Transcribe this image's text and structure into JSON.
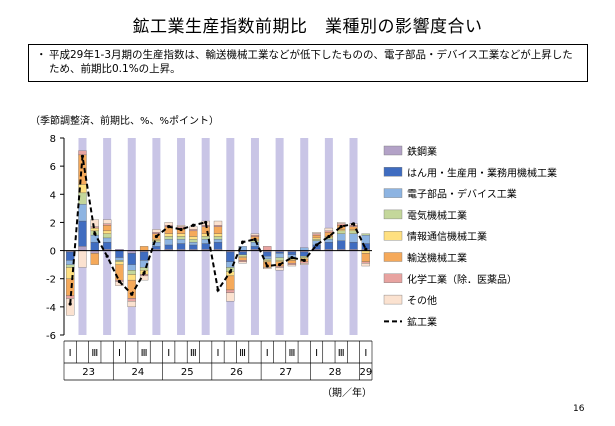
{
  "header": {
    "title": "鉱工業生産指数前期比　業種別の影響度合い",
    "note": "平成29年1-3月期の生産指数は、輸送機械工業などが低下したものの、電子部品・デバイス工業などが上昇したため、前期比0.1%の上昇。",
    "note_bullet": "・",
    "unit": "（季節調整済、前期比、%、%ポイント）",
    "page_number": "16"
  },
  "colors": {
    "shade": "#C9C5E6",
    "steel": "#B3A2C7",
    "general_machinery": "#3F6CC0",
    "electronic_parts": "#8DB4E2",
    "electrical_machinery": "#C4D79B",
    "info_equipment": "#FFE080",
    "transport": "#F5A95A",
    "chemical": "#E8A3A0",
    "other": "#FBE2D0",
    "mining_line": "#000000"
  },
  "chart_data": {
    "type": "bar",
    "subtype": "stacked bar with line overlay",
    "title": "鉱工業生産指数前期比　業種別の影響度合い",
    "ylabel": "（季節調整済、前期比、%、%ポイント）",
    "xlabel": "（期／年）",
    "ylim": [
      -6,
      8
    ],
    "yticks": [
      "-6",
      "-4",
      "-2",
      "0",
      "2",
      "4",
      "6",
      "8"
    ],
    "grid": false,
    "legend_position": "right",
    "categories": [
      "23-I",
      "23-II",
      "23-III",
      "23-IV",
      "24-I",
      "24-II",
      "24-III",
      "24-IV",
      "25-I",
      "25-II",
      "25-III",
      "25-IV",
      "26-I",
      "26-II",
      "26-III",
      "26-IV",
      "27-I",
      "27-II",
      "27-III",
      "27-IV",
      "28-I",
      "28-II",
      "28-III",
      "28-IV",
      "29-I"
    ],
    "x_tick_labels": [
      "Ⅰ",
      "Ⅲ",
      "Ⅰ",
      "Ⅲ",
      "Ⅰ",
      "Ⅲ",
      "Ⅰ",
      "Ⅲ",
      "Ⅰ",
      "Ⅲ",
      "Ⅰ",
      "Ⅲ",
      "Ⅰ"
    ],
    "x_tick_quarters": [
      0,
      2,
      4,
      6,
      8,
      10,
      12,
      14,
      16,
      18,
      20,
      22,
      24
    ],
    "year_labels": [
      "23",
      "24",
      "25",
      "26",
      "27",
      "28",
      "29"
    ],
    "year_start_quarters": [
      0,
      4,
      8,
      12,
      16,
      20,
      24
    ],
    "shaded_quarters": [
      1,
      3,
      5,
      7,
      9,
      11,
      13,
      15,
      17,
      19,
      21,
      23
    ],
    "series": [
      {
        "name": "鉄鋼業",
        "color_key": "steel",
        "values": [
          -0.1,
          0.3,
          -0.2,
          0.1,
          0.1,
          -0.2,
          -0.1,
          0.1,
          0.1,
          0.1,
          0.1,
          0.1,
          0.1,
          -0.1,
          -0.1,
          0.1,
          -0.1,
          -0.1,
          -0.1,
          -0.1,
          0.1,
          0.1,
          0.1,
          0.1,
          0.1
        ]
      },
      {
        "name": "はん用・生産用・業務用機械工業",
        "color_key": "general_machinery",
        "values": [
          -0.6,
          1.8,
          0.6,
          0.5,
          -0.5,
          -0.8,
          -0.6,
          0.2,
          0.3,
          0.4,
          0.3,
          0.4,
          0.5,
          -0.7,
          -0.2,
          0.2,
          -0.3,
          -0.1,
          -0.2,
          -0.3,
          0.3,
          0.5,
          0.6,
          0.5,
          0.4
        ]
      },
      {
        "name": "電子部品・デバイス工業",
        "color_key": "electronic_parts",
        "values": [
          -0.3,
          1.2,
          0.5,
          0.3,
          -0.2,
          -0.4,
          -0.5,
          0.3,
          0.4,
          0.3,
          0.2,
          0.3,
          0.2,
          -0.4,
          0.3,
          0.3,
          -0.2,
          -0.3,
          -0.2,
          0.2,
          0.3,
          0.2,
          0.5,
          0.6,
          0.6
        ]
      },
      {
        "name": "電気機械工業",
        "color_key": "electrical_machinery",
        "values": [
          -0.2,
          0.8,
          0.3,
          0.3,
          -0.1,
          -0.3,
          -0.2,
          0.1,
          0.2,
          0.2,
          0.2,
          0.2,
          0.2,
          -0.3,
          -0.1,
          0.1,
          -0.1,
          -0.2,
          -0.1,
          -0.1,
          0.1,
          0.1,
          0.2,
          0.2,
          0.1
        ]
      },
      {
        "name": "情報通信機械工業",
        "color_key": "info_equipment",
        "values": [
          -0.8,
          0.6,
          0.2,
          0.2,
          -0.2,
          -0.4,
          -0.3,
          0.1,
          0.2,
          0.2,
          0.2,
          0.2,
          0.2,
          -0.3,
          -0.1,
          0.1,
          -0.1,
          -0.1,
          -0.1,
          -0.1,
          0.1,
          0.1,
          0.1,
          0.1,
          -0.2
        ]
      },
      {
        "name": "輸送機械工業",
        "color_key": "transport",
        "values": [
          -1.2,
          2.1,
          -0.8,
          0.4,
          -1.1,
          -1.3,
          0.3,
          0.4,
          0.5,
          0.4,
          0.4,
          0.5,
          0.5,
          -1.0,
          -0.2,
          0.2,
          -0.4,
          -0.3,
          -0.2,
          -0.2,
          0.2,
          0.3,
          0.3,
          0.2,
          -0.6
        ]
      },
      {
        "name": "化学工業（除．医薬品）",
        "color_key": "chemical",
        "values": [
          -0.2,
          0.3,
          0.1,
          0.1,
          -0.1,
          -0.2,
          -0.1,
          0.1,
          0.1,
          0.1,
          0.1,
          0.1,
          0.1,
          -0.2,
          -0.1,
          0.1,
          0.3,
          -0.1,
          -0.1,
          -0.1,
          0.1,
          0.1,
          0.1,
          0.1,
          -0.1
        ]
      },
      {
        "name": "その他",
        "color_key": "other",
        "values": [
          -1.2,
          -1.2,
          0.5,
          0.3,
          -0.3,
          -0.4,
          -0.3,
          0.2,
          0.2,
          0.1,
          0.2,
          0.3,
          0.3,
          -0.6,
          -0.1,
          0.1,
          -0.1,
          -0.2,
          -0.1,
          -0.1,
          0.1,
          0.2,
          0.1,
          0.1,
          -0.2
        ]
      },
      {
        "name": "鉱工業",
        "type": "line",
        "style": "dashed",
        "color_key": "mining_line",
        "values": [
          -3.8,
          6.7,
          1.2,
          -0.4,
          -2.2,
          -3.1,
          -1.6,
          1.0,
          1.7,
          1.5,
          1.8,
          2.0,
          -2.8,
          -1.5,
          0.6,
          0.8,
          -1.1,
          -1.0,
          -0.5,
          -0.7,
          0.4,
          1.0,
          1.7,
          1.9,
          0.1
        ]
      }
    ]
  }
}
